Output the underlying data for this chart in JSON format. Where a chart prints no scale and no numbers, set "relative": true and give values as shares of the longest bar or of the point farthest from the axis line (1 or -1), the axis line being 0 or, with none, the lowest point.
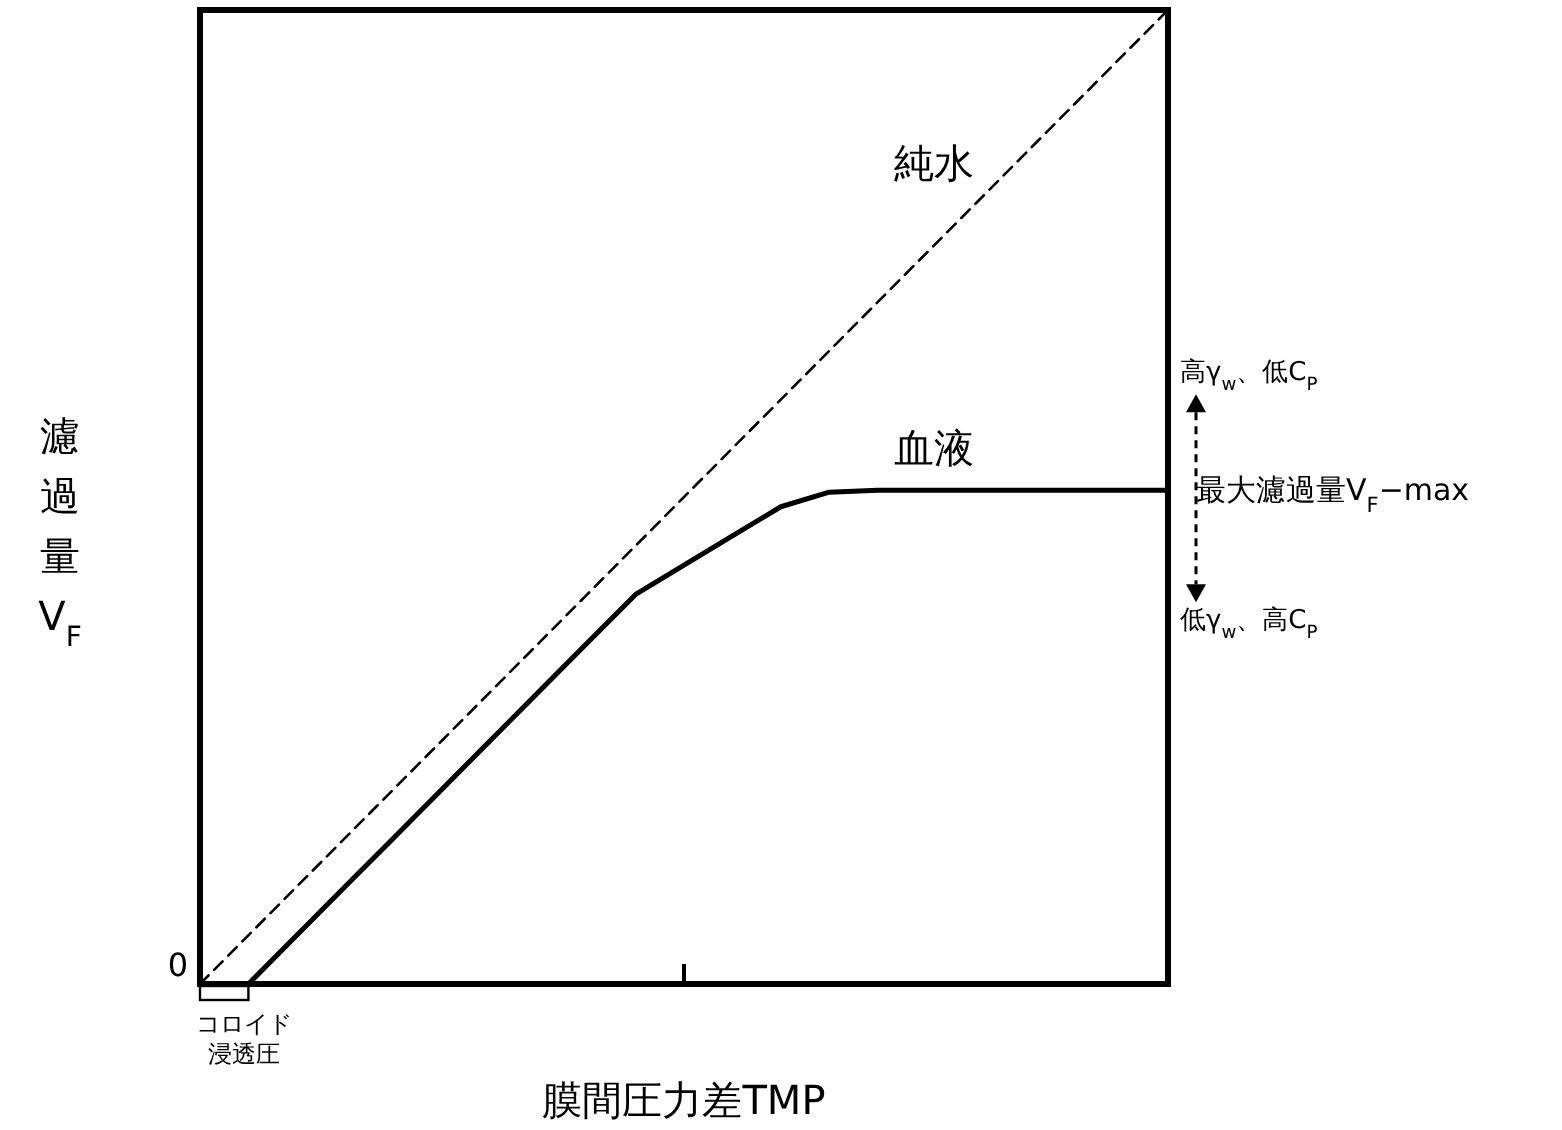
{
  "chart_data": {
    "type": "line",
    "relative": true,
    "xlabel": "膜間圧力差TMP",
    "ylabel": "濾過量V$_{F}$",
    "categories": [
      null,
      null,
      null,
      null,
      null,
      null,
      null,
      null,
      null,
      null,
      null,
      null,
      null,
      null,
      null,
      null,
      null,
      null,
      null,
      null,
      null
    ],
    "series": [
      {
        "name": "純水",
        "color": "#000000",
        "line_style": "dashed",
        "values": [
          0,
          0.05,
          0.1,
          0.15,
          0.2,
          0.25,
          0.3,
          0.35,
          0.4,
          0.45,
          0.5,
          0.55,
          0.6,
          0.65,
          0.7,
          0.75,
          0.8,
          0.85,
          0.9,
          0.95,
          1
        ]
      },
      {
        "name": "血液",
        "color": "#000000",
        "line_style": "solid",
        "values": [
          null,
          0,
          0.05,
          0.1,
          0.15,
          0.2,
          0.25,
          0.3,
          0.35,
          0.4,
          0.43,
          0.46,
          0.49,
          0.505,
          0.507,
          0.507,
          0.507,
          0.507,
          0.507,
          0.507,
          0.507
        ]
      }
    ],
    "annotations": [
      "0",
      "最大濾過量V$_{F}$−max",
      "高γ$_{w}$、低C$_{P}$",
      "低γ$_{w}$、高C$_{P}$",
      "コロイド浸透圧"
    ]
  }
}
